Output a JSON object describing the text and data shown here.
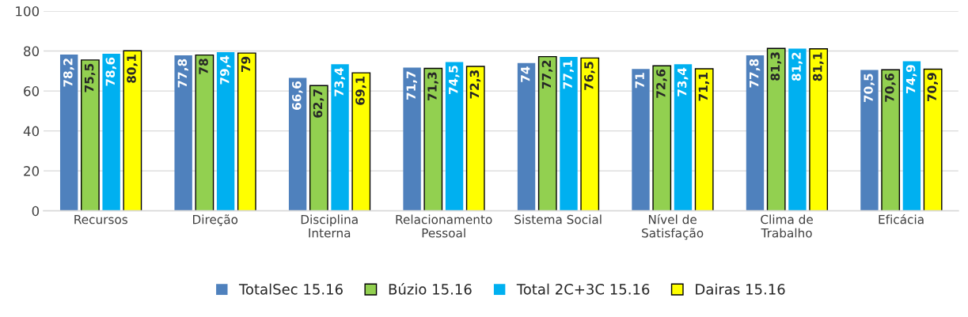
{
  "chart_data": {
    "type": "bar",
    "categories": [
      "Recursos",
      "Direção",
      "Disciplina\nInterna",
      "Relacionamento\nPessoal",
      "Sistema Social",
      "Nível de\nSatisfação",
      "Clima de\nTrabalho",
      "Eficácia"
    ],
    "series": [
      {
        "name": "TotalSec 15.16",
        "color": "#4f81bd",
        "values": [
          78.2,
          77.8,
          66.6,
          71.7,
          74,
          71,
          77.8,
          70.5
        ],
        "value_labels": [
          "78,2",
          "77,8",
          "66,6",
          "71,7",
          "74",
          "71",
          "77,8",
          "70,5"
        ]
      },
      {
        "name": "Búzio 15.16",
        "color": "#92d050",
        "values": [
          75.5,
          78,
          62.7,
          71.3,
          77.2,
          72.6,
          81.3,
          70.6
        ],
        "value_labels": [
          "75,5",
          "78",
          "62,7",
          "71,3",
          "77,2",
          "72,6",
          "81,3",
          "70,6"
        ]
      },
      {
        "name": "Total 2C+3C 15.16",
        "color": "#00b0f0",
        "values": [
          78.6,
          79.4,
          73.4,
          74.5,
          77.1,
          73.4,
          81.2,
          74.9
        ],
        "value_labels": [
          "78,6",
          "79,4",
          "73,4",
          "74,5",
          "77,1",
          "73,4",
          "81,2",
          "74,9"
        ]
      },
      {
        "name": "Dairas 15.16",
        "color": "#ffff00",
        "values": [
          80.1,
          79,
          69.1,
          72.3,
          76.5,
          71.1,
          81.1,
          70.9
        ],
        "value_labels": [
          "80,1",
          "79",
          "69,1",
          "72,3",
          "76,5",
          "71,1",
          "81,1",
          "70,9"
        ]
      }
    ],
    "ylim": [
      0,
      100
    ],
    "yticks": [
      0,
      20,
      40,
      60,
      80,
      100
    ],
    "grid": "y",
    "legend": "bottom"
  }
}
